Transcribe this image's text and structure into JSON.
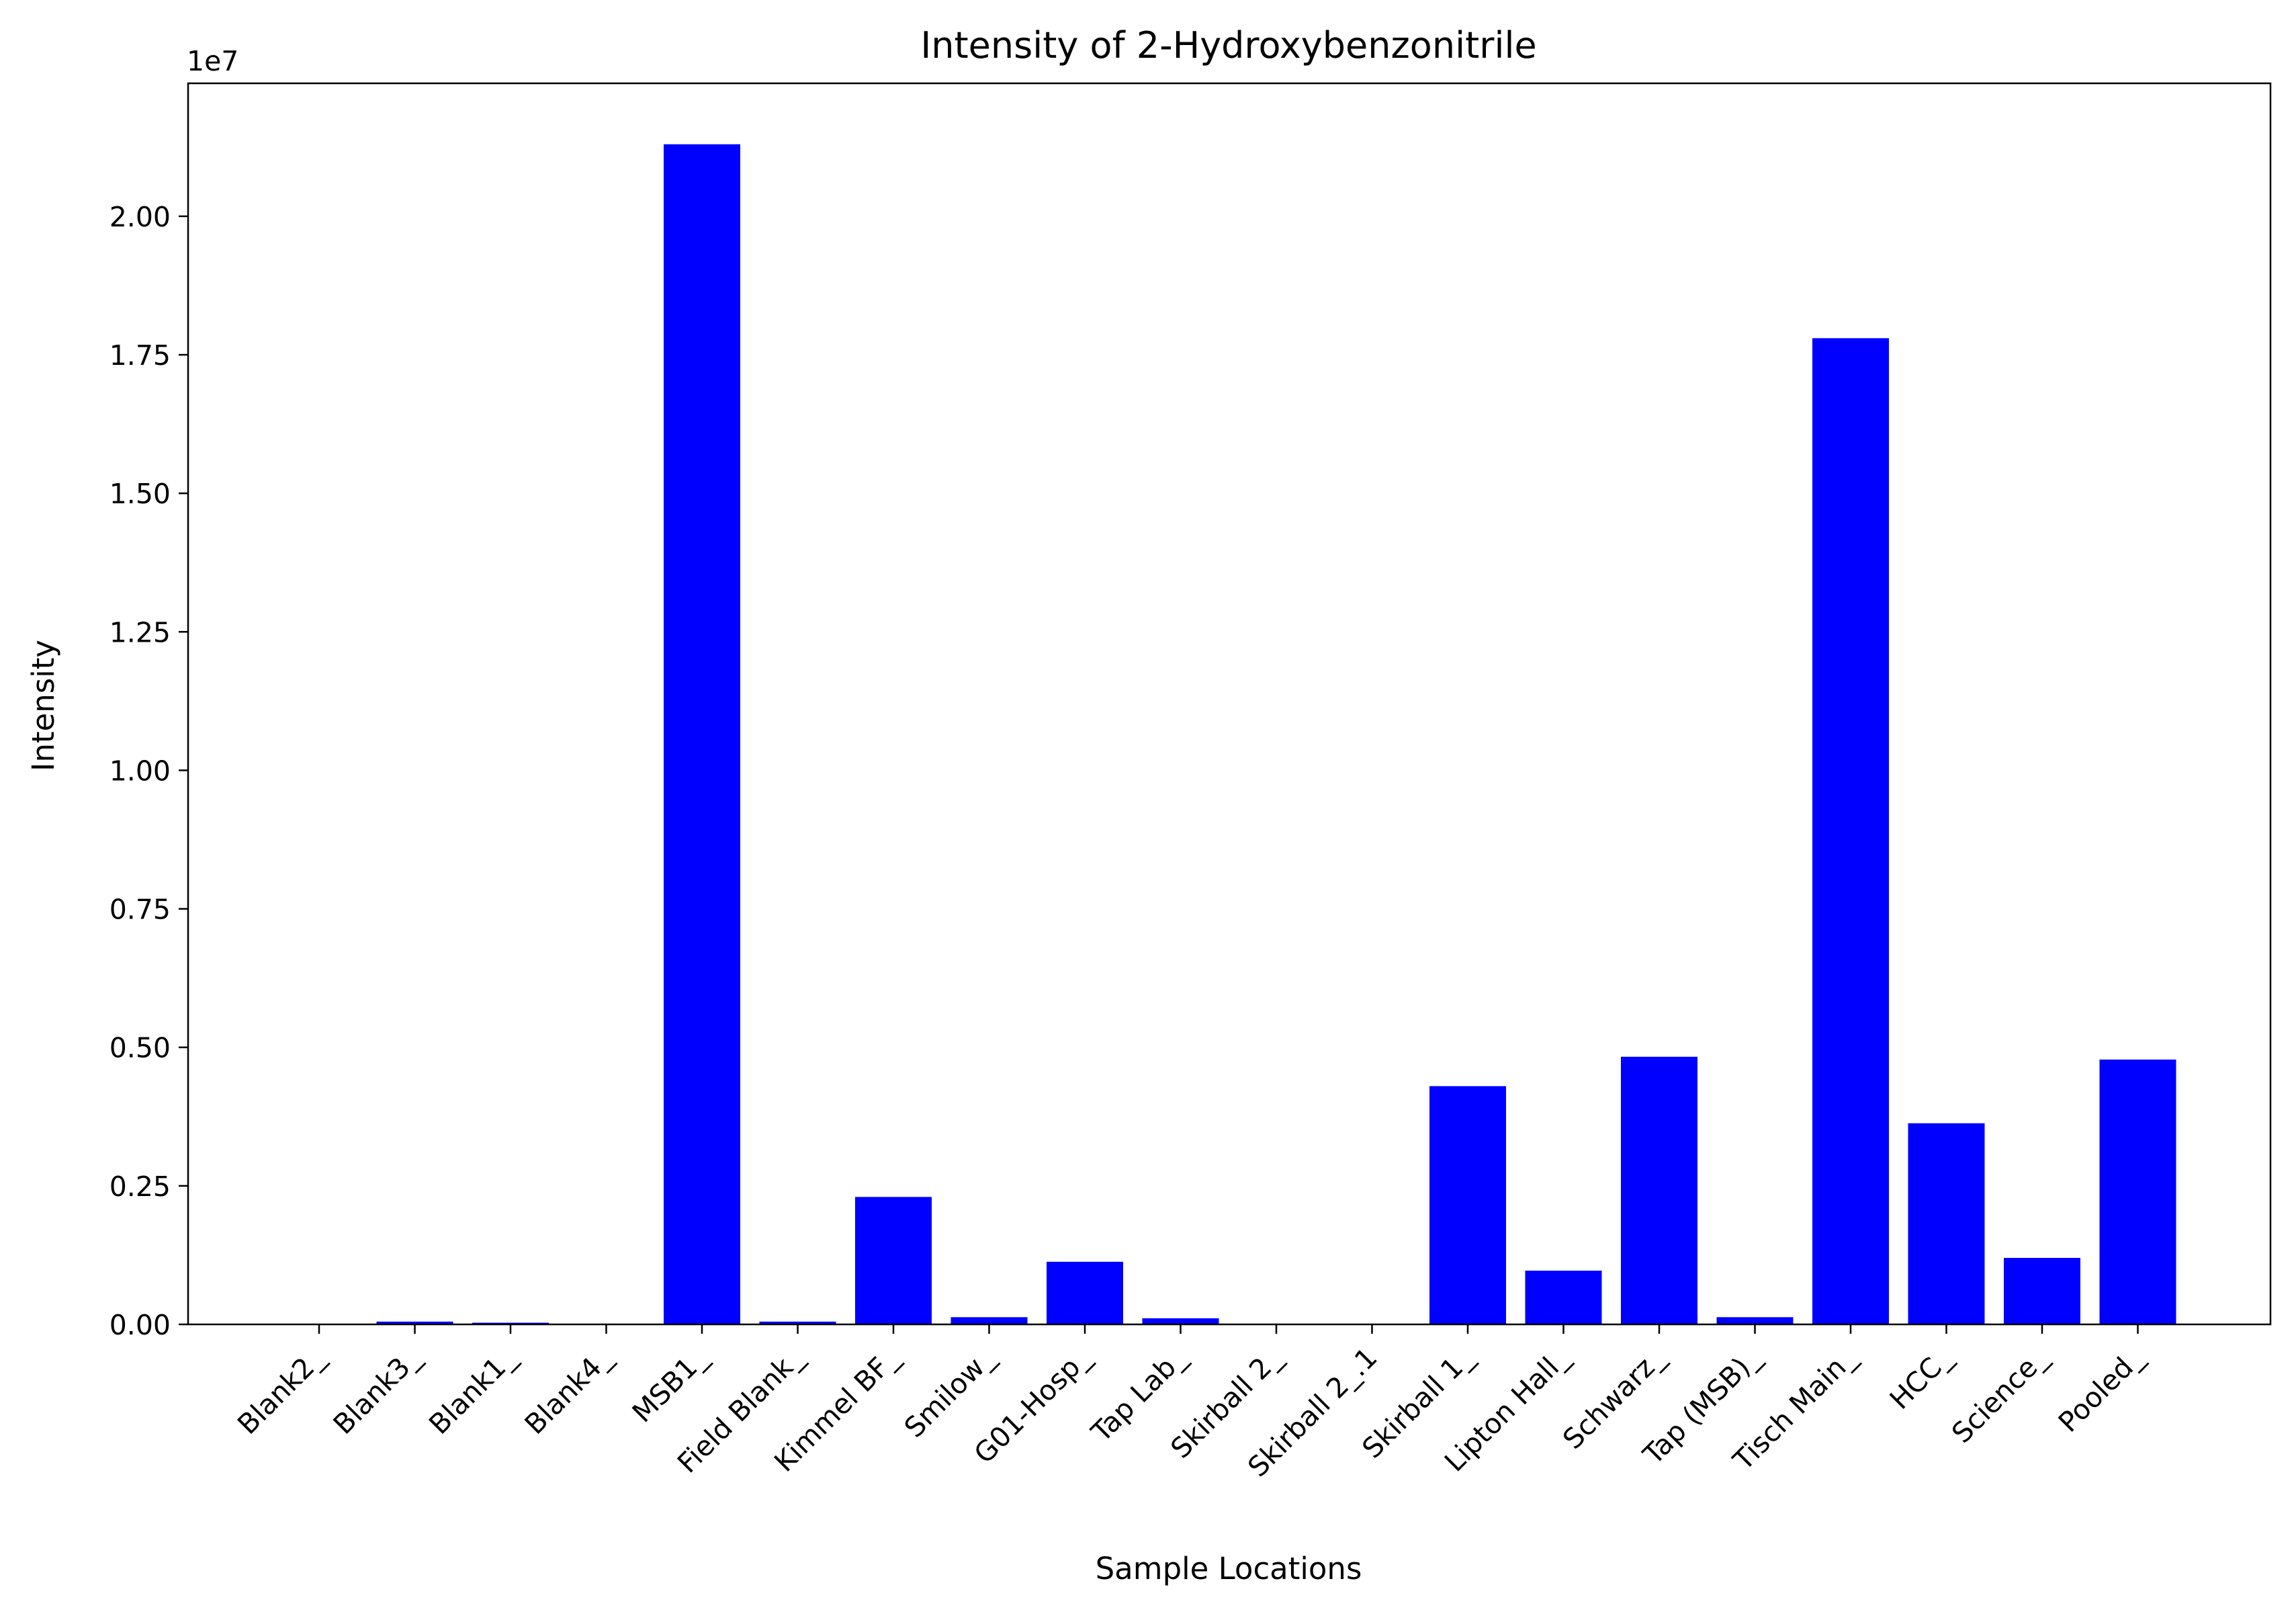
{
  "chart_data": {
    "type": "bar",
    "title": "Intensity of 2-Hydroxybenzonitrile",
    "xlabel": "Sample Locations",
    "ylabel": "Intensity",
    "y_offset_label": "1e7",
    "y_tick_values": [
      0,
      0.25,
      0.5,
      0.75,
      1.0,
      1.25,
      1.5,
      1.75,
      2.0
    ],
    "y_tick_labels": [
      "0.00",
      "0.25",
      "0.50",
      "0.75",
      "1.00",
      "1.25",
      "1.50",
      "1.75",
      "2.00"
    ],
    "ylim": [
      0,
      2.24
    ],
    "value_scale": "1e7",
    "categories": [
      "Blank2_",
      "Blank3_",
      "Blank1_",
      "Blank4_",
      "MSB1_",
      "Field Blank_",
      "Kimmel BF_",
      "Smilow_",
      "G01-Hosp_",
      "Tap Lab_",
      "Skirball 2_",
      "Skirball 2_.1",
      "Skirball 1_",
      "Lipton Hall_",
      "Schwarz_",
      "Tap (MSB)_",
      "Tisch Main_",
      "HCC_",
      "Science_",
      "Pooled_"
    ],
    "values": [
      0.0,
      0.005,
      0.003,
      0.0,
      2.13,
      0.005,
      0.23,
      0.013,
      0.113,
      0.011,
      0.0,
      0.0,
      0.43,
      0.097,
      0.483,
      0.013,
      1.78,
      0.363,
      0.12,
      0.478
    ],
    "bar_color": "#0000ff",
    "grid": false,
    "legend": "none"
  }
}
